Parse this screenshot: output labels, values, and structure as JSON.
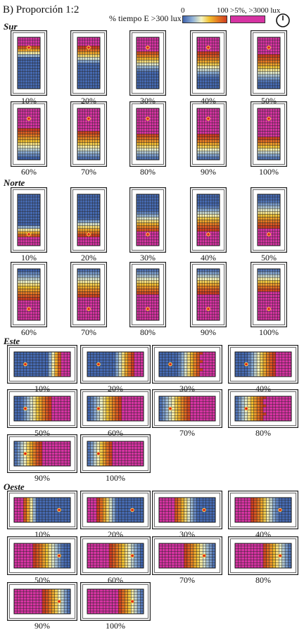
{
  "title": "B) Proporción 1:2",
  "legend": {
    "label": "% tiempo E >300 lux",
    "min": "0",
    "max": "100",
    "extra": ">5%, >3000 lux",
    "colors": {
      "low": "#3f63ae",
      "mid": "#f4f4c4",
      "high": "#cf3d22",
      "overlit": "#d633a2"
    }
  },
  "sections": [
    {
      "name": "Sur",
      "orientation": "vertical",
      "sensor": "top",
      "labels": [
        "10%",
        "20%",
        "30%",
        "40%",
        "50%",
        "60%",
        "70%",
        "80%",
        "90%",
        "100%"
      ]
    },
    {
      "name": "Norte",
      "orientation": "vertical",
      "sensor": "bottom",
      "labels": [
        "10%",
        "20%",
        "30%",
        "40%",
        "50%",
        "60%",
        "70%",
        "80%",
        "90%",
        "100%"
      ]
    },
    {
      "name": "Este",
      "orientation": "horizontal",
      "sensor": "left",
      "labels": [
        "10%",
        "20%",
        "30%",
        "40%",
        "50%",
        "60%",
        "70%",
        "80%",
        "90%",
        "100%"
      ]
    },
    {
      "name": "Oeste",
      "orientation": "horizontal",
      "sensor": "right",
      "labels": [
        "10%",
        "20%",
        "30%",
        "40%",
        "50%",
        "60%",
        "70%",
        "80%",
        "90%",
        "100%"
      ]
    }
  ]
}
